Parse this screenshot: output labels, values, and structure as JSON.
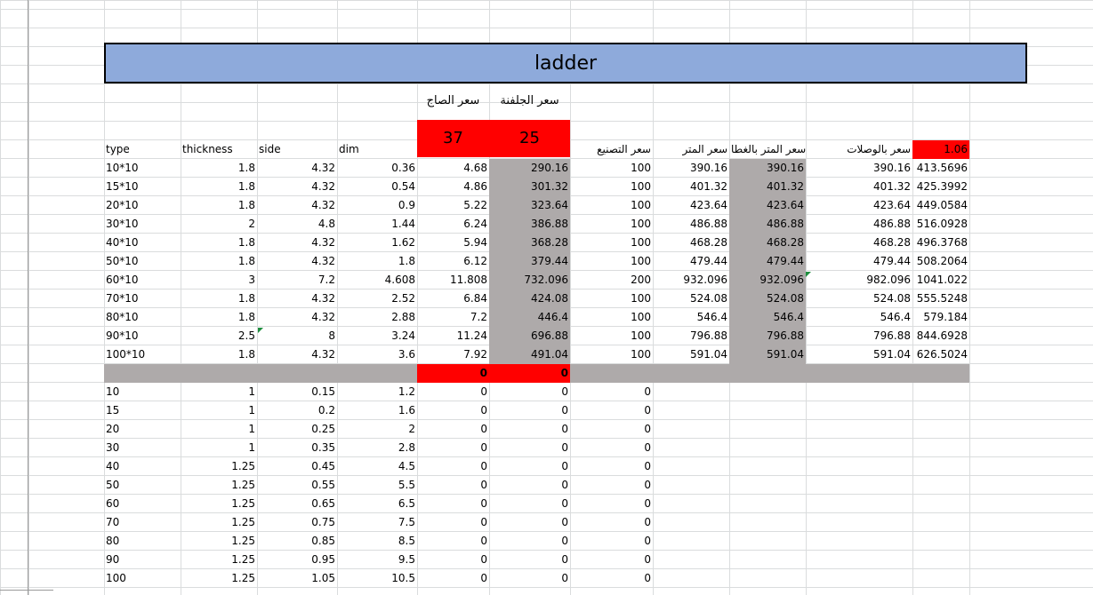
{
  "sheet": {
    "title": "ladder",
    "header_ar": {
      "sheet_price": "سعر الصاج",
      "galvanize_price": "سعر الجلفنة",
      "manufacture_price": "سعر التصنيع",
      "meter_price": "سعر المتر",
      "meter_price_cover": "سعر المتر بالغطا",
      "price_joints": "سعر بالوصلات"
    },
    "inputs": {
      "sheet_price": "37",
      "galvanize_price": "25",
      "factor": "1.06"
    },
    "col_headers": {
      "type": "type",
      "thickness": "thickness",
      "side": "side",
      "dim": "dim"
    },
    "rows": [
      [
        "10*10",
        "1.8",
        "4.32",
        "0.36",
        "4.68",
        "290.16",
        "100",
        "390.16",
        "390.16",
        "390.16",
        "413.5696"
      ],
      [
        "15*10",
        "1.8",
        "4.32",
        "0.54",
        "4.86",
        "301.32",
        "100",
        "401.32",
        "401.32",
        "401.32",
        "425.3992"
      ],
      [
        "20*10",
        "1.8",
        "4.32",
        "0.9",
        "5.22",
        "323.64",
        "100",
        "423.64",
        "423.64",
        "423.64",
        "449.0584"
      ],
      [
        "30*10",
        "2",
        "4.8",
        "1.44",
        "6.24",
        "386.88",
        "100",
        "486.88",
        "486.88",
        "486.88",
        "516.0928"
      ],
      [
        "40*10",
        "1.8",
        "4.32",
        "1.62",
        "5.94",
        "368.28",
        "100",
        "468.28",
        "468.28",
        "468.28",
        "496.3768"
      ],
      [
        "50*10",
        "1.8",
        "4.32",
        "1.8",
        "6.12",
        "379.44",
        "100",
        "479.44",
        "479.44",
        "479.44",
        "508.2064"
      ],
      [
        "60*10",
        "3",
        "7.2",
        "4.608",
        "11.808",
        "732.096",
        "200",
        "932.096",
        "932.096",
        "982.096",
        "1041.022"
      ],
      [
        "70*10",
        "1.8",
        "4.32",
        "2.52",
        "6.84",
        "424.08",
        "100",
        "524.08",
        "524.08",
        "524.08",
        "555.5248"
      ],
      [
        "80*10",
        "1.8",
        "4.32",
        "2.88",
        "7.2",
        "446.4",
        "100",
        "546.4",
        "546.4",
        "546.4",
        "579.184"
      ],
      [
        "90*10",
        "2.5",
        "8",
        "3.24",
        "11.24",
        "696.88",
        "100",
        "796.88",
        "796.88",
        "796.88",
        "844.6928"
      ],
      [
        "100*10",
        "1.8",
        "4.32",
        "3.6",
        "7.92",
        "491.04",
        "100",
        "591.04",
        "591.04",
        "591.04",
        "626.5024"
      ]
    ],
    "separator": {
      "sheet_zero": "0",
      "galv_zero": "0"
    },
    "rows2": [
      [
        "10",
        "1",
        "0.15",
        "1.2",
        "0",
        "0",
        "0"
      ],
      [
        "15",
        "1",
        "0.2",
        "1.6",
        "0",
        "0",
        "0"
      ],
      [
        "20",
        "1",
        "0.25",
        "2",
        "0",
        "0",
        "0"
      ],
      [
        "30",
        "1",
        "0.35",
        "2.8",
        "0",
        "0",
        "0"
      ],
      [
        "40",
        "1.25",
        "0.45",
        "4.5",
        "0",
        "0",
        "0"
      ],
      [
        "50",
        "1.25",
        "0.55",
        "5.5",
        "0",
        "0",
        "0"
      ],
      [
        "60",
        "1.25",
        "0.65",
        "6.5",
        "0",
        "0",
        "0"
      ],
      [
        "70",
        "1.25",
        "0.75",
        "7.5",
        "0",
        "0",
        "0"
      ],
      [
        "80",
        "1.25",
        "0.85",
        "8.5",
        "0",
        "0",
        "0"
      ],
      [
        "90",
        "1.25",
        "0.95",
        "9.5",
        "0",
        "0",
        "0"
      ],
      [
        "100",
        "1.25",
        "1.05",
        "10.5",
        "0",
        "0",
        "0"
      ]
    ]
  },
  "colors": {
    "title_fill": "#8eaadb",
    "input_red": "#ff0000",
    "gray_fill": "#aeaaaa",
    "gridline": "#dadcdd"
  }
}
